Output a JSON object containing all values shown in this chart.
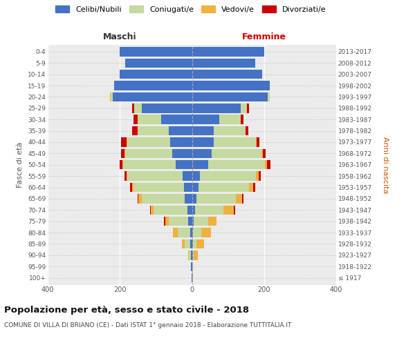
{
  "age_groups": [
    "100+",
    "95-99",
    "90-94",
    "85-89",
    "80-84",
    "75-79",
    "70-74",
    "65-69",
    "60-64",
    "55-59",
    "50-54",
    "45-49",
    "40-44",
    "35-39",
    "30-34",
    "25-29",
    "20-24",
    "15-19",
    "10-14",
    "5-9",
    "0-4"
  ],
  "birth_years": [
    "≤ 1917",
    "1918-1922",
    "1923-1927",
    "1928-1932",
    "1933-1937",
    "1938-1942",
    "1943-1947",
    "1948-1952",
    "1953-1957",
    "1958-1962",
    "1963-1967",
    "1968-1972",
    "1973-1977",
    "1978-1982",
    "1983-1987",
    "1988-1992",
    "1993-1997",
    "1998-2002",
    "2003-2007",
    "2008-2012",
    "2013-2017"
  ],
  "maschi_celibi": [
    1,
    2,
    3,
    5,
    5,
    10,
    12,
    20,
    22,
    25,
    45,
    55,
    60,
    65,
    85,
    140,
    220,
    215,
    200,
    185,
    200
  ],
  "maschi_coniugati": [
    0,
    1,
    5,
    15,
    35,
    55,
    95,
    120,
    140,
    155,
    145,
    130,
    120,
    85,
    65,
    20,
    5,
    0,
    0,
    0,
    0
  ],
  "maschi_vedovi": [
    0,
    0,
    3,
    8,
    12,
    8,
    8,
    8,
    4,
    2,
    2,
    2,
    1,
    0,
    0,
    0,
    2,
    0,
    0,
    0,
    0
  ],
  "maschi_divorziati": [
    0,
    0,
    0,
    0,
    0,
    4,
    2,
    3,
    5,
    6,
    8,
    10,
    15,
    15,
    12,
    5,
    0,
    0,
    0,
    0,
    0
  ],
  "femmine_celibi": [
    1,
    1,
    2,
    2,
    3,
    4,
    8,
    12,
    18,
    22,
    45,
    55,
    60,
    60,
    75,
    135,
    210,
    215,
    195,
    175,
    200
  ],
  "femmine_coniugati": [
    0,
    0,
    3,
    10,
    22,
    42,
    80,
    110,
    140,
    155,
    158,
    138,
    118,
    88,
    60,
    18,
    6,
    0,
    0,
    0,
    0
  ],
  "femmine_vedovi": [
    1,
    2,
    12,
    22,
    28,
    22,
    28,
    18,
    12,
    8,
    5,
    3,
    1,
    0,
    0,
    0,
    0,
    0,
    0,
    0,
    0
  ],
  "femmine_divorziati": [
    0,
    0,
    0,
    0,
    0,
    0,
    3,
    3,
    5,
    5,
    10,
    8,
    8,
    8,
    8,
    5,
    0,
    0,
    0,
    0,
    0
  ],
  "color_celibi": "#4472c4",
  "color_coniugati": "#c5d9a0",
  "color_vedovi": "#f0b040",
  "color_divorziati": "#cc0000",
  "title": "Popolazione per età, sesso e stato civile - 2018",
  "subtitle": "COMUNE DI VILLA DI BRIANO (CE) - Dati ISTAT 1° gennaio 2018 - Elaborazione TUTTITALIA.IT",
  "xlabel_left": "Maschi",
  "xlabel_right": "Femmine",
  "ylabel_left": "Fasce di età",
  "ylabel_right": "Anni di nascita",
  "xlim": 400,
  "bg_color": "#ebebeb"
}
